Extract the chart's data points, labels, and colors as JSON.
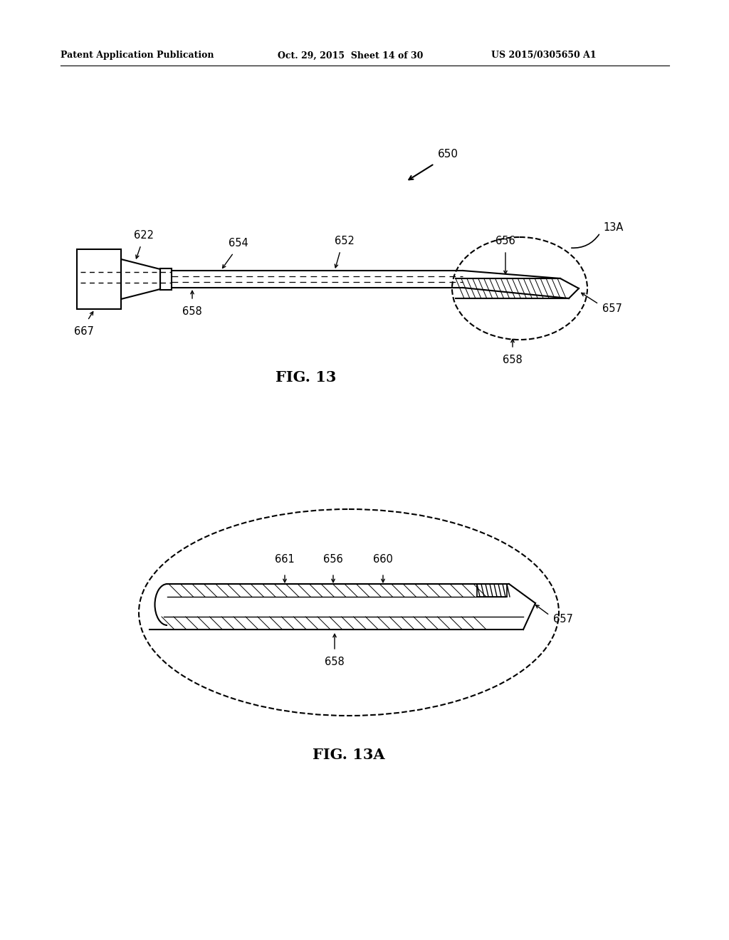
{
  "bg_color": "#ffffff",
  "line_color": "#000000",
  "header_left": "Patent Application Publication",
  "header_mid": "Oct. 29, 2015  Sheet 14 of 30",
  "header_right": "US 2015/0305650 A1",
  "fig13_label": "FIG. 13",
  "fig13a_label": "FIG. 13A",
  "ref_650": "650",
  "ref_622": "622",
  "ref_654": "654",
  "ref_652": "652",
  "ref_656_top": "656",
  "ref_658_mid": "658",
  "ref_667": "667",
  "ref_658_bot": "658",
  "ref_657": "657",
  "ref_13A": "13A",
  "ref_661": "661",
  "ref_656_2": "656",
  "ref_660": "660",
  "ref_657_2": "657",
  "ref_658_3": "658"
}
